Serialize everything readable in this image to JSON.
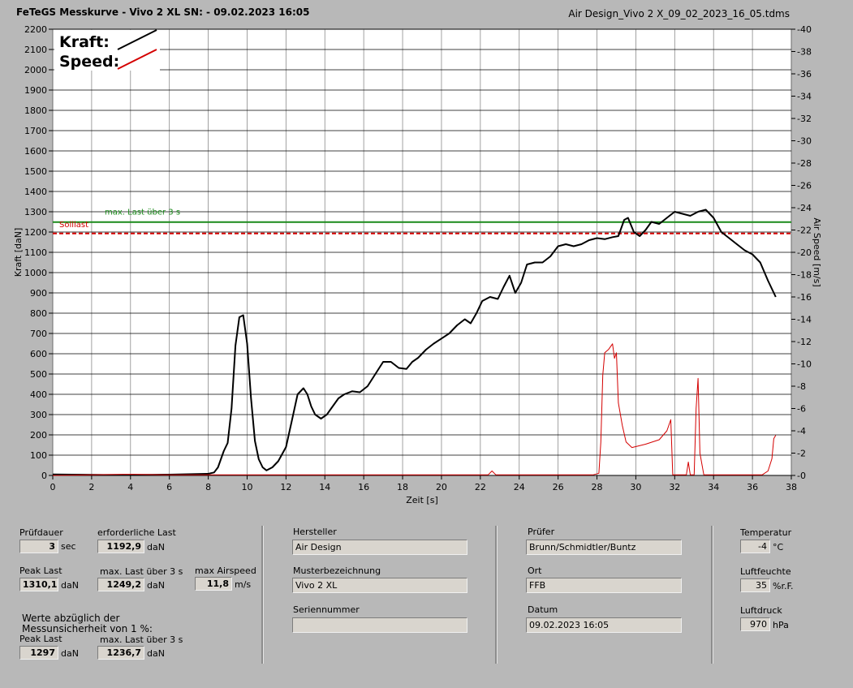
{
  "header": {
    "title": "FeTeGS Messkurve - Vivo 2 XL  SN:  - 09.02.2023 16:05",
    "file": "Air Design_Vivo 2 X_09_02_2023_16_05.tdms"
  },
  "chart_data": {
    "type": "line",
    "xlabel": "Zeit [s]",
    "ylabel": "Kraft [daN]",
    "y2label": "Air Speed [m/s]",
    "xlim": [
      0,
      38
    ],
    "ylim": [
      0,
      2200
    ],
    "y2lim": [
      0,
      40
    ],
    "xticks": [
      0,
      2,
      4,
      6,
      8,
      10,
      12,
      14,
      16,
      18,
      20,
      22,
      24,
      26,
      28,
      30,
      32,
      34,
      36,
      38
    ],
    "yticks": [
      0,
      100,
      200,
      300,
      400,
      500,
      600,
      700,
      800,
      900,
      1000,
      1100,
      1200,
      1300,
      1400,
      1500,
      1600,
      1700,
      1800,
      1900,
      2000,
      2100,
      2200
    ],
    "y2ticks": [
      0,
      2,
      4,
      6,
      8,
      10,
      12,
      14,
      16,
      18,
      20,
      22,
      24,
      26,
      28,
      30,
      32,
      34,
      36,
      38,
      40
    ],
    "grid": true,
    "legend": [
      {
        "label": "Kraft:",
        "color": "#000000"
      },
      {
        "label": "Speed:",
        "color": "#d40000"
      }
    ],
    "reference_lines": [
      {
        "label": "max. Last über  3 s",
        "value": 1249.2,
        "color": "#1a8a1a",
        "style": "solid"
      },
      {
        "label": "Solllast",
        "value": 1192.9,
        "color": "#d40000",
        "style": "dashed"
      }
    ],
    "series": [
      {
        "name": "Kraft",
        "axis": "left",
        "color": "#000000",
        "x": [
          0,
          2,
          4,
          6,
          8,
          8.3,
          8.5,
          8.8,
          9.0,
          9.2,
          9.4,
          9.6,
          9.8,
          10.0,
          10.2,
          10.4,
          10.6,
          10.8,
          11.0,
          11.3,
          11.6,
          12.0,
          12.3,
          12.6,
          12.9,
          13.1,
          13.3,
          13.5,
          13.8,
          14.1,
          14.4,
          14.7,
          15.0,
          15.4,
          15.8,
          16.2,
          16.6,
          17.0,
          17.4,
          17.8,
          18.2,
          18.5,
          18.8,
          19.2,
          19.6,
          20.0,
          20.4,
          20.8,
          21.2,
          21.5,
          21.8,
          22.1,
          22.5,
          22.9,
          23.2,
          23.5,
          23.8,
          24.1,
          24.4,
          24.8,
          25.2,
          25.6,
          26.0,
          26.4,
          26.8,
          27.2,
          27.6,
          28.0,
          28.4,
          28.8,
          29.1,
          29.4,
          29.6,
          29.9,
          30.2,
          30.5,
          30.8,
          31.2,
          31.6,
          32.0,
          32.4,
          32.8,
          33.2,
          33.6,
          34.0,
          34.4,
          34.8,
          35.2,
          35.6,
          36.0,
          36.4,
          36.8,
          37.2
        ],
        "values": [
          5,
          3,
          2,
          4,
          8,
          15,
          40,
          120,
          160,
          330,
          640,
          780,
          790,
          650,
          380,
          170,
          80,
          40,
          25,
          40,
          70,
          140,
          270,
          400,
          430,
          400,
          340,
          300,
          280,
          300,
          340,
          380,
          400,
          415,
          410,
          440,
          500,
          560,
          560,
          530,
          525,
          560,
          580,
          620,
          650,
          675,
          700,
          740,
          770,
          750,
          800,
          860,
          880,
          870,
          930,
          985,
          900,
          950,
          1040,
          1050,
          1050,
          1080,
          1130,
          1140,
          1130,
          1140,
          1160,
          1170,
          1165,
          1175,
          1180,
          1260,
          1270,
          1200,
          1180,
          1210,
          1250,
          1240,
          1270,
          1300,
          1290,
          1280,
          1300,
          1310,
          1270,
          1200,
          1170,
          1140,
          1110,
          1090,
          1050,
          960,
          880
        ]
      },
      {
        "name": "Speed",
        "axis": "right",
        "color": "#d40000",
        "x": [
          0,
          3.6,
          4.2,
          5.8,
          6.4,
          22.4,
          22.6,
          22.8,
          27.8,
          28.1,
          28.2,
          28.3,
          28.4,
          28.6,
          28.8,
          28.9,
          29.0,
          29.1,
          29.3,
          29.5,
          29.8,
          30.5,
          31.2,
          31.6,
          31.8,
          31.9,
          32.0,
          32.6,
          32.7,
          32.8,
          33.0,
          33.1,
          33.2,
          33.3,
          33.5,
          36.5,
          36.8,
          37.0,
          37.1,
          37.2
        ],
        "values": [
          0,
          0.1,
          0.1,
          0.05,
          0.05,
          0.05,
          0.4,
          0.05,
          0.05,
          0.2,
          3,
          9,
          11,
          11.3,
          11.8,
          10.5,
          11,
          6.5,
          4.5,
          3,
          2.5,
          2.8,
          3.2,
          4,
          5,
          0.05,
          0.05,
          0.05,
          1.2,
          0.05,
          0.05,
          6,
          8.7,
          2,
          0.05,
          0.05,
          0.4,
          1.5,
          3.3,
          3.6
        ]
      }
    ]
  },
  "panel": {
    "pruefdauer_label": "Prüfdauer",
    "pruefdauer_value": "3",
    "pruefdauer_unit": "sec",
    "erf_last_label": "erforderliche Last",
    "erf_last_value": "1192,9",
    "erf_last_unit": "daN",
    "peak_last_label": "Peak Last",
    "peak_last_value": "1310,1",
    "peak_last_unit": "daN",
    "max_last_label": "max. Last über  3 s",
    "max_last_value": "1249,2",
    "max_last_unit": "daN",
    "max_airspeed_label": "max Airspeed",
    "max_airspeed_value": "11,8",
    "max_airspeed_unit": "m/s",
    "werte_text_1": "Werte abzüglich der",
    "werte_text_2": "Messunsicherheit von 1   %:",
    "peak_last2_label": "Peak Last",
    "peak_last2_value": "1297",
    "peak_last2_unit": "daN",
    "max_last2_label": "max. Last über  3 s",
    "max_last2_value": "1236,7",
    "max_last2_unit": "daN",
    "hersteller_label": "Hersteller",
    "hersteller_value": "Air Design",
    "muster_label": "Musterbezeichnung",
    "muster_value": "Vivo 2 XL",
    "serien_label": "Seriennummer",
    "serien_value": "",
    "pruefer_label": "Prüfer",
    "pruefer_value": "Brunn/Schmidtler/Buntz",
    "ort_label": "Ort",
    "ort_value": "FFB",
    "datum_label": "Datum",
    "datum_value": "09.02.2023 16:05",
    "temp_label": "Temperatur",
    "temp_value": "-4",
    "temp_unit": "°C",
    "feuchte_label": "Luftfeuchte",
    "feuchte_value": "35",
    "feuchte_unit": "%r.F.",
    "druck_label": "Luftdruck",
    "druck_value": "970",
    "druck_unit": "hPa"
  }
}
